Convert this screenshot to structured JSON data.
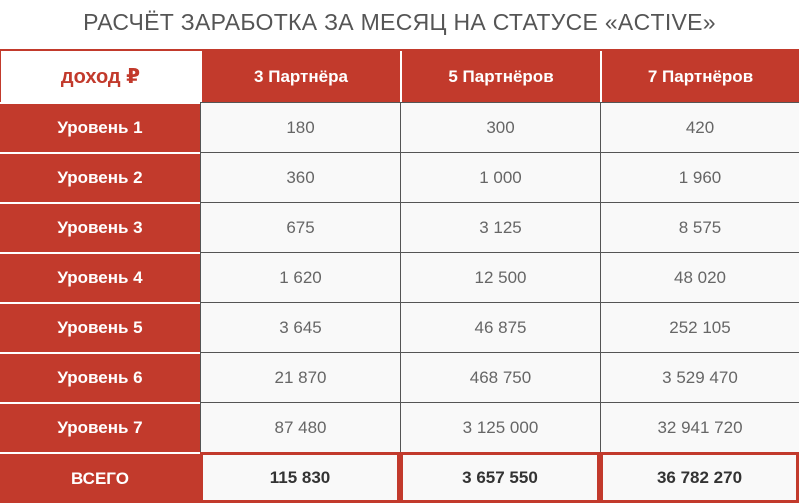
{
  "title": "РАСЧЁТ ЗАРАБОТКА ЗА МЕСЯЦ НА СТАТУСЕ «ACTIVE»",
  "corner_label": "доход ₽",
  "colors": {
    "accent": "#c23a2c",
    "cell_bg": "#f9f9f9"
  },
  "columns": [
    "3 Партнёра",
    "5 Партнёров",
    "7 Партнёров"
  ],
  "rows": [
    {
      "label": "Уровень 1",
      "values": [
        "180",
        "300",
        "420"
      ]
    },
    {
      "label": "Уровень 2",
      "values": [
        "360",
        "1 000",
        "1 960"
      ]
    },
    {
      "label": "Уровень 3",
      "values": [
        "675",
        "3 125",
        "8 575"
      ]
    },
    {
      "label": "Уровень 4",
      "values": [
        "1 620",
        "12 500",
        "48 020"
      ]
    },
    {
      "label": "Уровень 5",
      "values": [
        "3 645",
        "46 875",
        "252 105"
      ]
    },
    {
      "label": "Уровень 6",
      "values": [
        "21 870",
        "468 750",
        "3 529 470"
      ]
    },
    {
      "label": "Уровень 7",
      "values": [
        "87 480",
        "3 125 000",
        "32 941 720"
      ]
    }
  ],
  "total": {
    "label": "ВСЕГО",
    "values": [
      "115 830",
      "3 657 550",
      "36 782 270"
    ]
  }
}
